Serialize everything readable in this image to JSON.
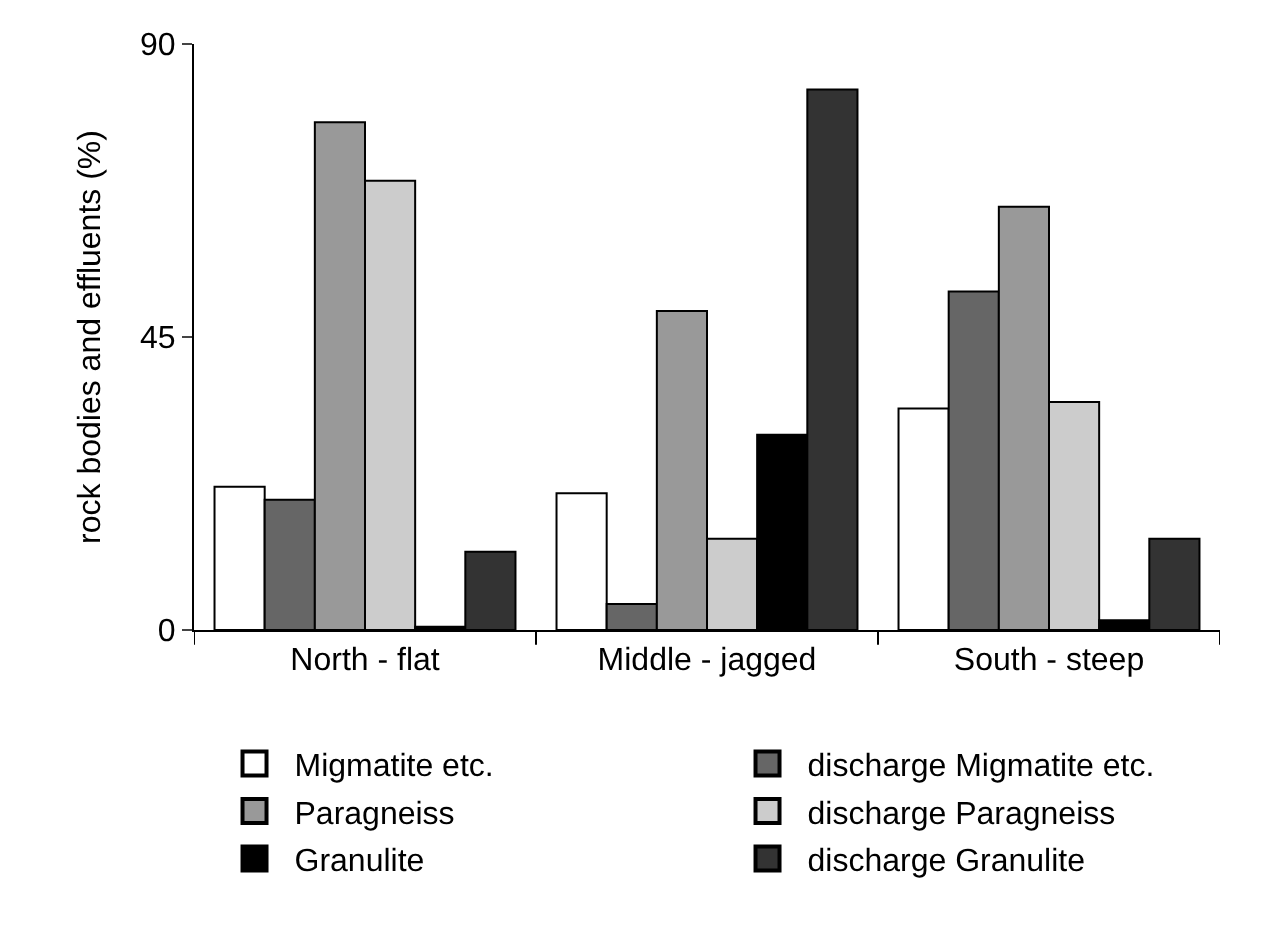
{
  "chart_data": {
    "type": "bar",
    "ylabel": "rock bodies and effluents (%)",
    "categories": [
      "North - flat",
      "Middle - jagged",
      "South - steep"
    ],
    "series": [
      {
        "name": "Migmatite etc.",
        "color": "#ffffff",
        "values": [
          22,
          21,
          34
        ]
      },
      {
        "name": "discharge Migmatite etc.",
        "color": "#666666",
        "values": [
          20,
          4,
          52
        ]
      },
      {
        "name": "Paragneiss",
        "color": "#999999",
        "values": [
          78,
          49,
          65
        ]
      },
      {
        "name": "discharge Paragneiss",
        "color": "#cccccc",
        "values": [
          69,
          14,
          35
        ]
      },
      {
        "name": "Granulite",
        "color": "#000000",
        "values": [
          0.5,
          30,
          1.5
        ]
      },
      {
        "name": "discharge Granulite",
        "color": "#333333",
        "values": [
          12,
          83,
          14
        ]
      }
    ],
    "ylim": [
      0,
      90
    ],
    "yticks": [
      0,
      45,
      90
    ],
    "legend": "bottom"
  }
}
